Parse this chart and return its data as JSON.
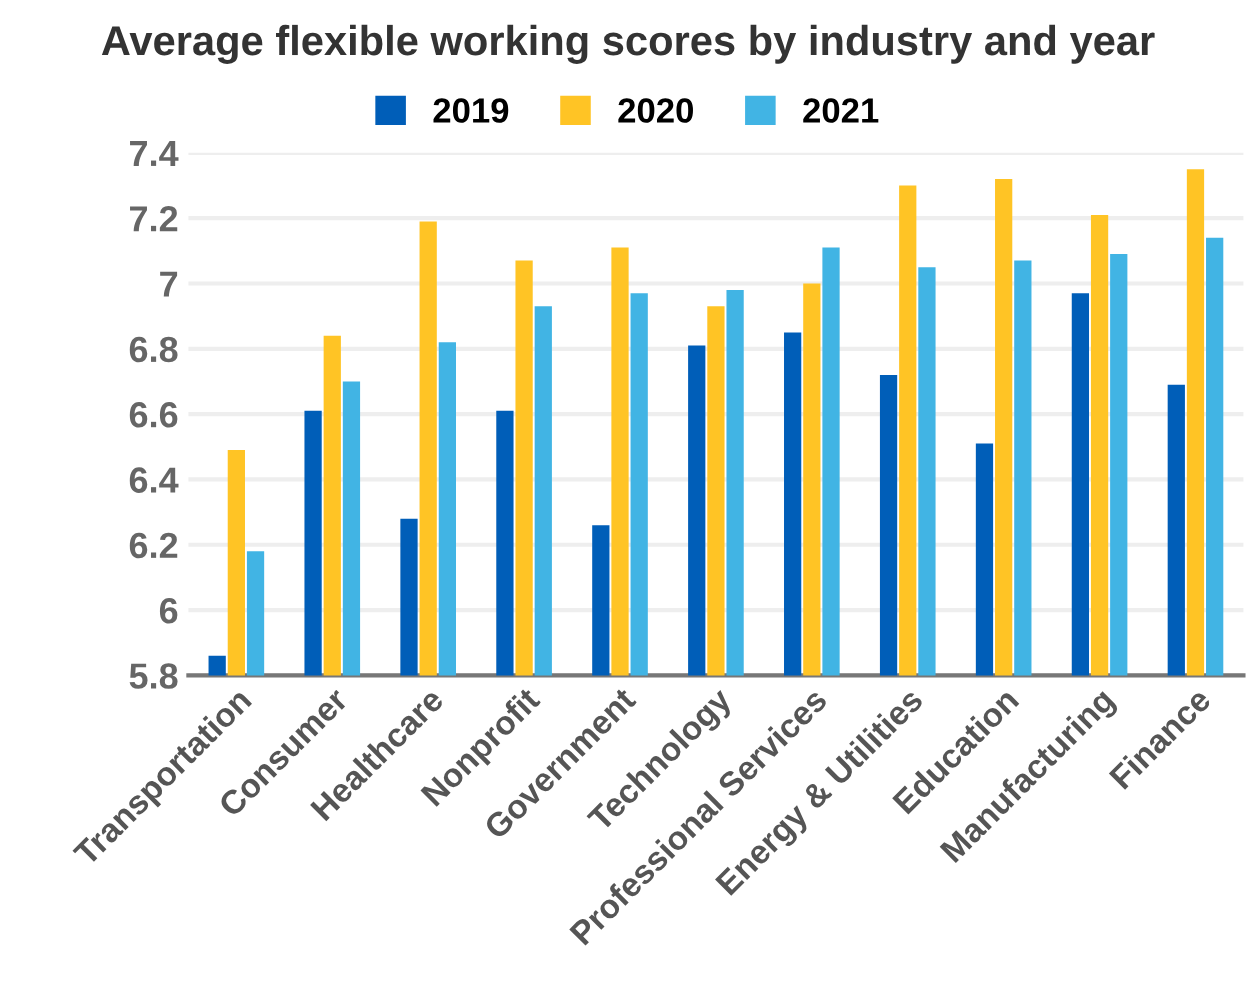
{
  "chart_data": {
    "type": "bar",
    "title": "Average flexible working scores by industry and year",
    "categories": [
      "Transportation",
      "Consumer",
      "Healthcare",
      "Nonprofit",
      "Government",
      "Technology",
      "Professional Services",
      "Energy & Utilities",
      "Education",
      "Manufacturing",
      "Finance"
    ],
    "series": [
      {
        "name": "2019",
        "color": "#005eb8",
        "values": [
          5.86,
          6.61,
          6.28,
          6.61,
          6.26,
          6.81,
          6.85,
          6.72,
          6.51,
          6.97,
          6.69
        ]
      },
      {
        "name": "2020",
        "color": "#ffc425",
        "values": [
          6.49,
          6.84,
          7.19,
          7.07,
          7.11,
          6.93,
          7.0,
          7.3,
          7.32,
          7.21,
          7.35
        ]
      },
      {
        "name": "2021",
        "color": "#41b4e4",
        "values": [
          6.18,
          6.7,
          6.82,
          6.93,
          6.97,
          6.98,
          7.11,
          7.05,
          7.07,
          7.09,
          7.14
        ]
      }
    ],
    "ylim": [
      5.8,
      7.4
    ],
    "yticks": [
      5.8,
      6,
      6.2,
      6.4,
      6.6,
      6.8,
      7,
      7.2,
      7.4
    ],
    "grid": "y",
    "legend": "top"
  }
}
